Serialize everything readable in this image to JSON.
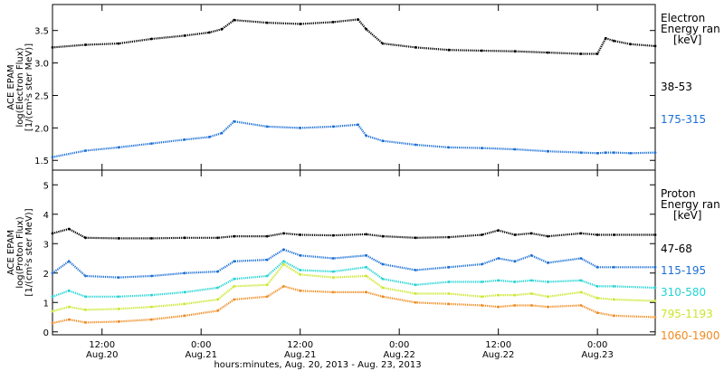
{
  "xaxis": {
    "title": "hours:minutes, Aug. 20, 2013 - Aug. 23, 2013",
    "ticks": [
      {
        "h": 12,
        "time": "12:00",
        "date": "Aug.20"
      },
      {
        "h": 24,
        "time": "0:00",
        "date": "Aug.21"
      },
      {
        "h": 36,
        "time": "12:00",
        "date": "Aug.21"
      },
      {
        "h": 48,
        "time": "0:00",
        "date": "Aug.22"
      },
      {
        "h": 60,
        "time": "12:00",
        "date": "Aug.22"
      },
      {
        "h": 72,
        "time": "0:00",
        "date": "Aug.23"
      }
    ],
    "range": [
      6,
      79
    ]
  },
  "panels": [
    {
      "name": "electron",
      "ylabel": [
        "ACE EPAM",
        "log(Electron Flux)",
        "[1/(cm²s ster MeV)]"
      ],
      "legend_title": [
        "Electron",
        "Energy ran"
      ],
      "legend_unit": "[keV]",
      "ylim": [
        1.35,
        3.9
      ],
      "yticks": [
        "1.5",
        "2.0",
        "2.5",
        "3.0",
        "3.5"
      ],
      "ytick_values": [
        1.5,
        2.0,
        2.5,
        3.0,
        3.5
      ]
    },
    {
      "name": "proton",
      "ylabel": [
        "ACE EPAM",
        "log(Proton Flux)",
        "[1/(cm²s ster MeV)]"
      ],
      "legend_title": [
        "Proton",
        "Energy ran"
      ],
      "legend_unit": "[keV]",
      "ylim": [
        -0.1,
        5.5
      ],
      "yticks": [
        "0",
        "1",
        "2",
        "3",
        "4",
        "5"
      ],
      "ytick_values": [
        0,
        1,
        2,
        3,
        4,
        5
      ]
    }
  ],
  "chart_data": {
    "type": "scatter",
    "x_unit": "hours since Aug. 20, 2013 0:00",
    "series": [
      {
        "panel": 0,
        "name": "38-53",
        "color": "#000000",
        "x": [
          6,
          10,
          14,
          18,
          22,
          25,
          26.5,
          28,
          32,
          36,
          40,
          43,
          44,
          46,
          50,
          54,
          58,
          62,
          66,
          70,
          72,
          73,
          74,
          76,
          79
        ],
        "y": [
          3.24,
          3.28,
          3.3,
          3.37,
          3.42,
          3.47,
          3.52,
          3.66,
          3.62,
          3.6,
          3.63,
          3.67,
          3.52,
          3.3,
          3.24,
          3.2,
          3.19,
          3.18,
          3.16,
          3.14,
          3.14,
          3.38,
          3.34,
          3.29,
          3.26
        ]
      },
      {
        "panel": 0,
        "name": "175-315",
        "color": "#1a6fd6",
        "x": [
          6,
          10,
          14,
          18,
          22,
          25,
          26.5,
          28,
          32,
          36,
          40,
          43,
          44,
          46,
          50,
          54,
          58,
          62,
          66,
          70,
          72,
          73,
          74,
          76,
          79
        ],
        "y": [
          1.55,
          1.65,
          1.7,
          1.76,
          1.82,
          1.86,
          1.92,
          2.1,
          2.02,
          2.0,
          2.02,
          2.05,
          1.88,
          1.8,
          1.74,
          1.7,
          1.69,
          1.67,
          1.64,
          1.62,
          1.61,
          1.62,
          1.62,
          1.61,
          1.62
        ]
      },
      {
        "panel": 1,
        "name": "47-68",
        "color": "#000000",
        "x": [
          6,
          8,
          10,
          14,
          18,
          22,
          26,
          28,
          32,
          34,
          36,
          40,
          44,
          46,
          50,
          54,
          58,
          60,
          62,
          64,
          66,
          70,
          72,
          74,
          79
        ],
        "y": [
          3.35,
          3.5,
          3.2,
          3.18,
          3.18,
          3.2,
          3.2,
          3.25,
          3.25,
          3.35,
          3.3,
          3.28,
          3.32,
          3.25,
          3.2,
          3.22,
          3.3,
          3.45,
          3.3,
          3.35,
          3.25,
          3.35,
          3.3,
          3.3,
          3.3
        ]
      },
      {
        "panel": 1,
        "name": "115-195",
        "color": "#1a6fd6",
        "x": [
          6,
          8,
          10,
          14,
          18,
          22,
          26,
          28,
          32,
          34,
          36,
          40,
          44,
          46,
          50,
          54,
          58,
          60,
          62,
          64,
          66,
          70,
          72,
          74,
          79
        ],
        "y": [
          2.0,
          2.4,
          1.9,
          1.85,
          1.9,
          2.0,
          2.05,
          2.4,
          2.45,
          2.8,
          2.6,
          2.5,
          2.6,
          2.3,
          2.1,
          2.2,
          2.3,
          2.5,
          2.4,
          2.6,
          2.35,
          2.5,
          2.2,
          2.2,
          2.2
        ]
      },
      {
        "panel": 1,
        "name": "310-580",
        "color": "#22d3d3",
        "x": [
          6,
          8,
          10,
          14,
          18,
          22,
          26,
          28,
          32,
          34,
          36,
          40,
          44,
          46,
          50,
          54,
          58,
          60,
          62,
          64,
          66,
          70,
          72,
          74,
          79
        ],
        "y": [
          1.2,
          1.4,
          1.2,
          1.2,
          1.25,
          1.35,
          1.5,
          1.8,
          1.9,
          2.4,
          2.1,
          2.05,
          2.2,
          1.8,
          1.6,
          1.7,
          1.7,
          1.75,
          1.7,
          1.75,
          1.7,
          1.75,
          1.55,
          1.55,
          1.5
        ]
      },
      {
        "panel": 1,
        "name": "795-1193",
        "color": "#cce62a",
        "x": [
          6,
          8,
          10,
          14,
          18,
          22,
          26,
          28,
          32,
          34,
          36,
          40,
          44,
          46,
          50,
          54,
          58,
          60,
          62,
          64,
          66,
          70,
          72,
          74,
          79
        ],
        "y": [
          0.7,
          0.85,
          0.75,
          0.78,
          0.85,
          0.95,
          1.1,
          1.55,
          1.6,
          2.3,
          1.95,
          1.85,
          1.9,
          1.5,
          1.3,
          1.3,
          1.2,
          1.25,
          1.25,
          1.3,
          1.2,
          1.35,
          1.15,
          1.1,
          1.05
        ]
      },
      {
        "panel": 1,
        "name": "1060-1900",
        "color": "#f08a1e",
        "x": [
          6,
          8,
          10,
          14,
          18,
          22,
          26,
          28,
          32,
          34,
          36,
          40,
          44,
          46,
          50,
          54,
          58,
          60,
          62,
          64,
          66,
          70,
          72,
          74,
          79
        ],
        "y": [
          0.3,
          0.42,
          0.32,
          0.35,
          0.42,
          0.55,
          0.72,
          1.1,
          1.2,
          1.55,
          1.4,
          1.35,
          1.35,
          1.2,
          1.0,
          0.95,
          0.9,
          0.85,
          0.9,
          0.9,
          0.85,
          0.9,
          0.65,
          0.55,
          0.5
        ]
      }
    ]
  }
}
